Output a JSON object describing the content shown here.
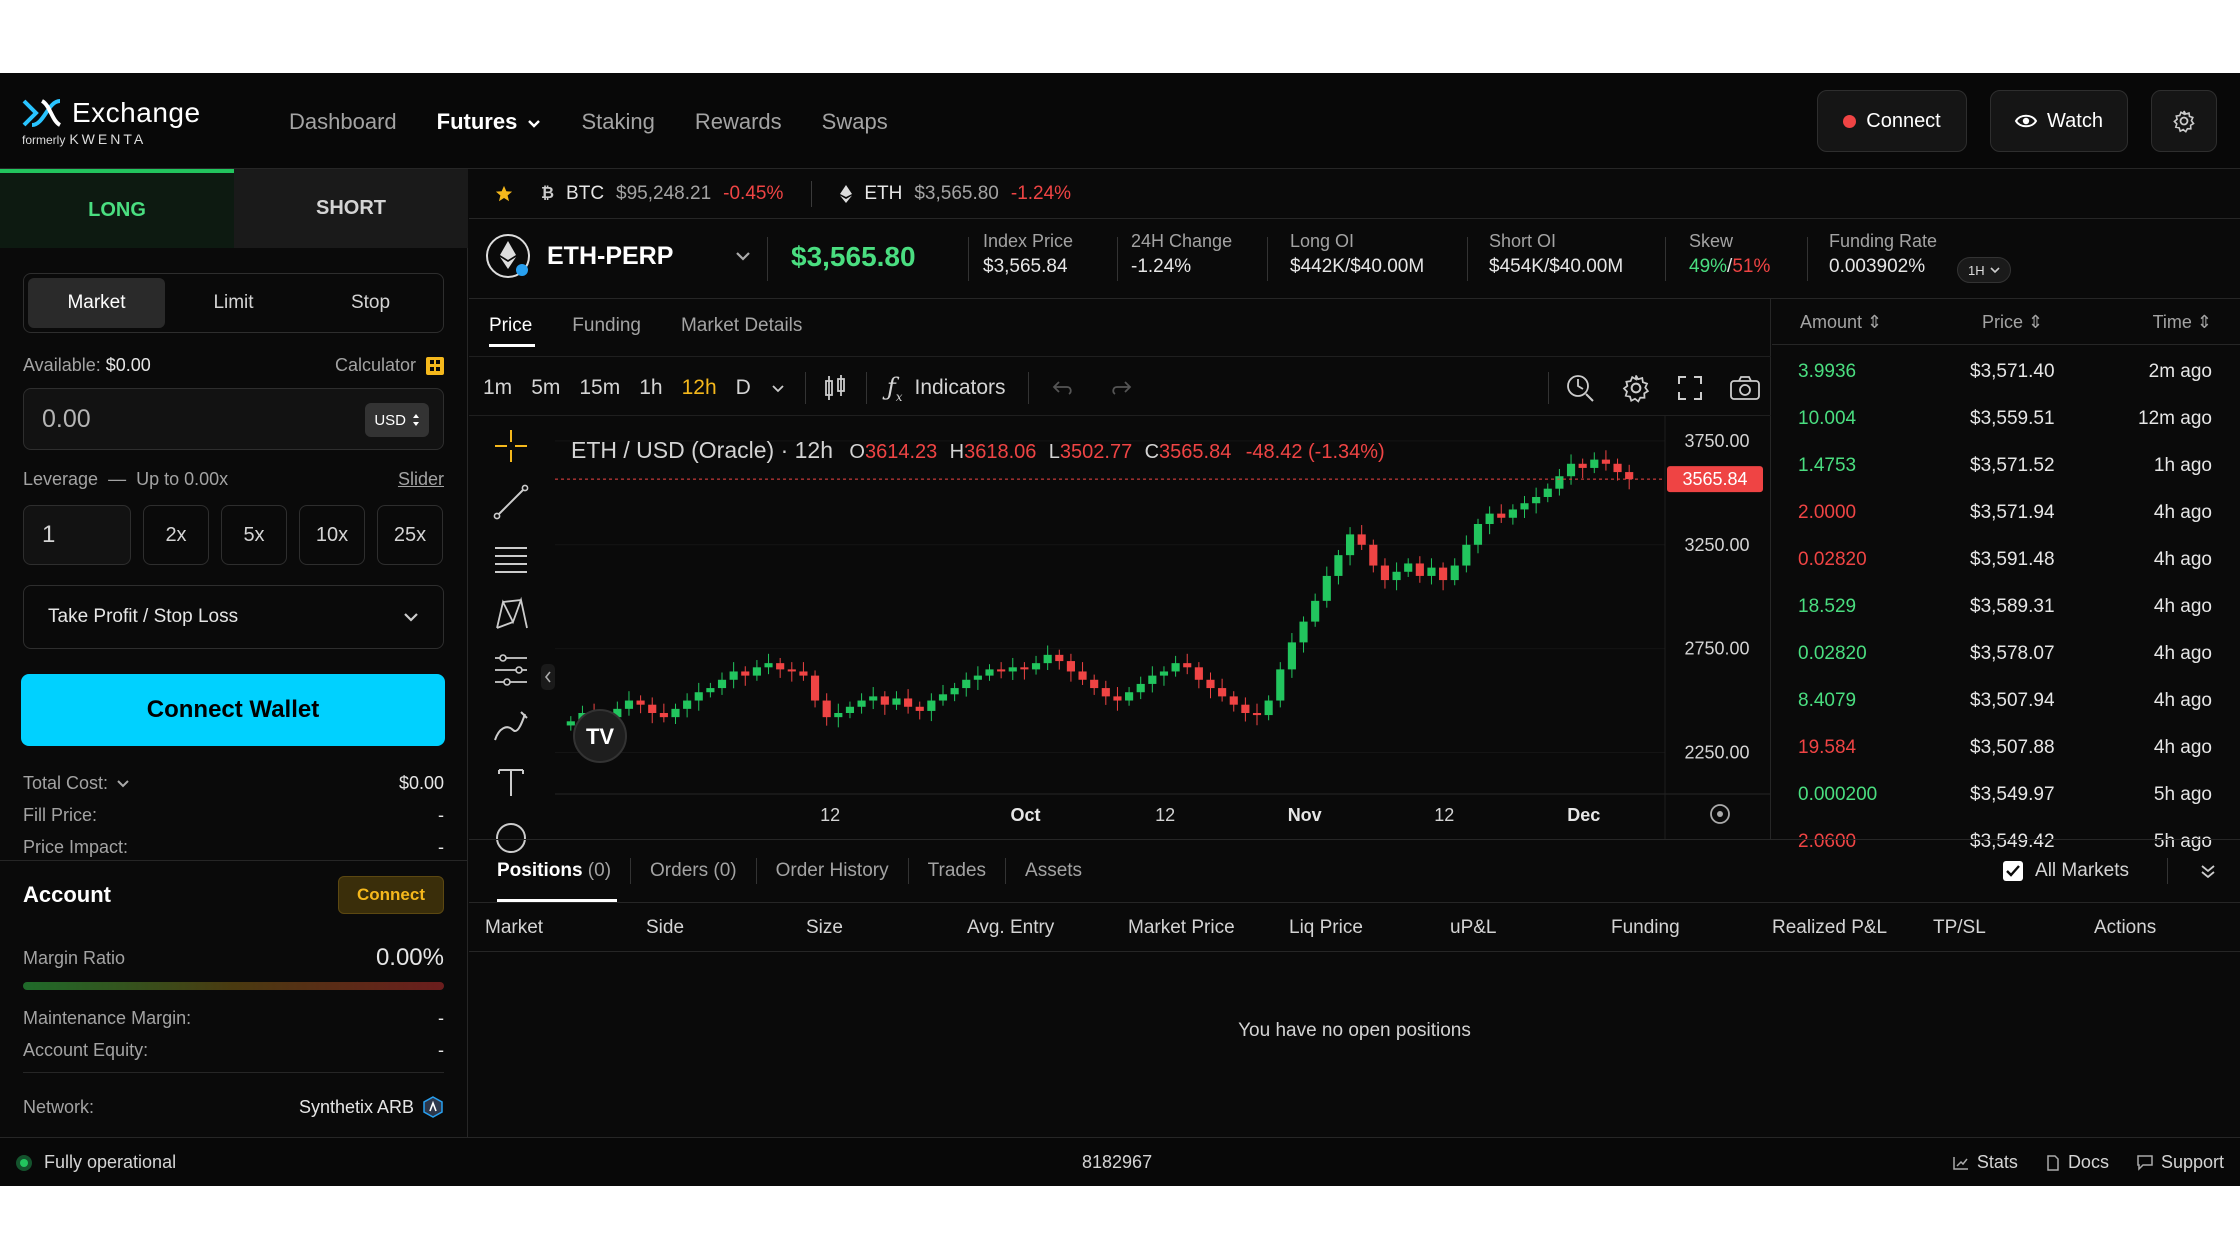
{
  "header": {
    "logo_text": "Exchange",
    "logo_sub_prefix": "formerly",
    "logo_sub_brand": "KWENTA",
    "nav": [
      "Dashboard",
      "Futures",
      "Staking",
      "Rewards",
      "Swaps"
    ],
    "connect_label": "Connect",
    "watch_label": "Watch"
  },
  "order_panel": {
    "long_label": "LONG",
    "short_label": "SHORT",
    "order_types": [
      "Market",
      "Limit",
      "Stop"
    ],
    "available_label": "Available:",
    "available_value": "$0.00",
    "calculator_label": "Calculator",
    "amount_placeholder": "0.00",
    "currency": "USD",
    "leverage_label": "Leverage",
    "leverage_upto": "Up to 0.00x",
    "slider_label": "Slider",
    "leverage_value": "1",
    "leverage_presets": [
      "2x",
      "5x",
      "10x",
      "25x"
    ],
    "tpsl_label": "Take Profit / Stop Loss",
    "connect_wallet_label": "Connect Wallet",
    "total_cost_label": "Total Cost:",
    "total_cost_value": "$0.00",
    "fill_price_label": "Fill Price:",
    "fill_price_value": "-",
    "price_impact_label": "Price Impact:",
    "price_impact_value": "-"
  },
  "account": {
    "title": "Account",
    "connect_label": "Connect",
    "margin_ratio_label": "Margin Ratio",
    "margin_ratio_value": "0.00%",
    "maintenance_label": "Maintenance Margin:",
    "maintenance_value": "-",
    "equity_label": "Account Equity:",
    "equity_value": "-",
    "network_label": "Network:",
    "network_value": "Synthetix ARB"
  },
  "ticker": [
    {
      "symbol": "BTC",
      "price": "$95,248.21",
      "change": "-0.45%"
    },
    {
      "symbol": "ETH",
      "price": "$3,565.80",
      "change": "-1.24%"
    }
  ],
  "market": {
    "name": "ETH-PERP",
    "price": "$3,565.80",
    "stats": [
      {
        "label": "Index Price",
        "value": "$3,565.84",
        "tone": "plain"
      },
      {
        "label": "24H Change",
        "value": "-1.24%",
        "tone": "red"
      },
      {
        "label": "Long OI",
        "value": "$442K/$40.00M",
        "tone": "plain"
      },
      {
        "label": "Short OI",
        "value": "$454K/$40.00M",
        "tone": "plain"
      }
    ],
    "skew_label": "Skew",
    "skew_long": "49%",
    "skew_short": "51%",
    "funding_label": "Funding Rate",
    "funding_value": "0.003902%",
    "funding_period": "1H"
  },
  "chart_tabs": [
    "Price",
    "Funding",
    "Market Details"
  ],
  "timeframes": [
    "1m",
    "5m",
    "15m",
    "1h",
    "12h",
    "D"
  ],
  "indicators_label": "Indicators",
  "chart_data": {
    "type": "candlestick",
    "title": "ETH / USD (Oracle) · 12h",
    "ohlc": {
      "O": "3614.23",
      "H": "3618.06",
      "L": "3502.77",
      "C": "3565.84",
      "change": "-48.42 (-1.34%)"
    },
    "last_price": "3565.84",
    "y_ticks": [
      "3750.00",
      "3250.00",
      "2750.00",
      "2250.00"
    ],
    "y_tick_values": [
      3750,
      3250,
      2750,
      2250
    ],
    "ylim": [
      2050,
      3870
    ],
    "x_ticks": [
      "12",
      "Oct",
      "12",
      "Nov",
      "12",
      "Dec"
    ],
    "x_tick_positions": [
      9.5,
      16.5,
      21.5,
      26.5,
      31.5,
      36.5
    ],
    "closes": [
      2400,
      2440,
      2380,
      2420,
      2460,
      2500,
      2480,
      2440,
      2420,
      2460,
      2500,
      2540,
      2560,
      2600,
      2640,
      2620,
      2660,
      2680,
      2650,
      2640,
      2620,
      2500,
      2420,
      2440,
      2470,
      2500,
      2520,
      2480,
      2510,
      2470,
      2450,
      2500,
      2530,
      2560,
      2600,
      2620,
      2650,
      2640,
      2660,
      2650,
      2680,
      2720,
      2690,
      2640,
      2600,
      2560,
      2520,
      2500,
      2540,
      2580,
      2620,
      2640,
      2680,
      2660,
      2600,
      2560,
      2520,
      2480,
      2440,
      2430,
      2500,
      2650,
      2780,
      2880,
      2980,
      3100,
      3200,
      3300,
      3250,
      3150,
      3080,
      3120,
      3160,
      3100,
      3140,
      3080,
      3150,
      3250,
      3350,
      3400,
      3380,
      3420,
      3450,
      3480,
      3520,
      3580,
      3640,
      3620,
      3660,
      3640,
      3600,
      3566
    ]
  },
  "trades": {
    "headers": [
      "Amount",
      "Price",
      "Time"
    ],
    "rows": [
      {
        "amount": "3.9936",
        "price": "$3,571.40",
        "time": "2m ago",
        "side": "buy"
      },
      {
        "amount": "10.004",
        "price": "$3,559.51",
        "time": "12m ago",
        "side": "buy"
      },
      {
        "amount": "1.4753",
        "price": "$3,571.52",
        "time": "1h ago",
        "side": "buy"
      },
      {
        "amount": "2.0000",
        "price": "$3,571.94",
        "time": "4h ago",
        "side": "sell"
      },
      {
        "amount": "0.02820",
        "price": "$3,591.48",
        "time": "4h ago",
        "side": "sell"
      },
      {
        "amount": "18.529",
        "price": "$3,589.31",
        "time": "4h ago",
        "side": "buy"
      },
      {
        "amount": "0.02820",
        "price": "$3,578.07",
        "time": "4h ago",
        "side": "buy"
      },
      {
        "amount": "8.4079",
        "price": "$3,507.94",
        "time": "4h ago",
        "side": "buy"
      },
      {
        "amount": "19.584",
        "price": "$3,507.88",
        "time": "4h ago",
        "side": "sell"
      },
      {
        "amount": "0.000200",
        "price": "$3,549.97",
        "time": "5h ago",
        "side": "buy"
      },
      {
        "amount": "2.0600",
        "price": "$3,549.42",
        "time": "5h ago",
        "side": "sell"
      }
    ]
  },
  "bottom": {
    "tabs": [
      {
        "label": "Positions",
        "count": "(0)"
      },
      {
        "label": "Orders",
        "count": "(0)"
      },
      {
        "label": "Order History",
        "count": ""
      },
      {
        "label": "Trades",
        "count": ""
      },
      {
        "label": "Assets",
        "count": ""
      }
    ],
    "all_markets_label": "All Markets",
    "columns": [
      "Market",
      "Side",
      "Size",
      "Avg. Entry",
      "Market Price",
      "Liq Price",
      "uP&L",
      "Funding",
      "Realized P&L",
      "TP/SL",
      "Actions"
    ],
    "empty_message": "You have no open positions"
  },
  "footer": {
    "status": "Fully operational",
    "block": "8182967",
    "links": [
      "Stats",
      "Docs",
      "Support"
    ]
  },
  "colors": {
    "accent": "#00d1ff",
    "green": "#22c55e",
    "red": "#ef4444",
    "gold": "#f5b81c"
  }
}
